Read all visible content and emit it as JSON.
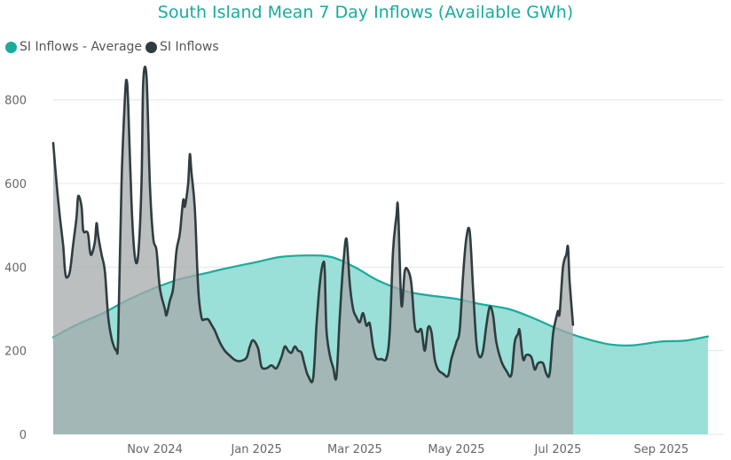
{
  "chart_data": {
    "type": "area",
    "title": "South Island Mean 7 Day Inflows (Available GWh)",
    "xlabel": "",
    "ylabel": "",
    "ylim": [
      0,
      880
    ],
    "xlim": [
      "2024-09-01",
      "2025-09-29"
    ],
    "y_ticks": [
      0,
      200,
      400,
      600,
      800
    ],
    "x_ticks": [
      {
        "label": "Nov 2024",
        "date": "2024-11-01"
      },
      {
        "label": "Jan 2025",
        "date": "2025-01-01"
      },
      {
        "label": "Mar 2025",
        "date": "2025-03-01"
      },
      {
        "label": "May 2025",
        "date": "2025-05-01"
      },
      {
        "label": "Jul 2025",
        "date": "2025-07-01"
      },
      {
        "label": "Sep 2025",
        "date": "2025-09-01"
      }
    ],
    "grid": true,
    "legend_position": "top-left",
    "series": [
      {
        "name": "SI Inflows - Average",
        "color": "#1aab9b",
        "fill": "#8fdcd4",
        "points": [
          [
            "2024-09-01",
            232
          ],
          [
            "2024-09-15",
            262
          ],
          [
            "2024-10-01",
            290
          ],
          [
            "2024-10-15",
            320
          ],
          [
            "2024-11-01",
            350
          ],
          [
            "2024-11-15",
            370
          ],
          [
            "2024-12-01",
            385
          ],
          [
            "2024-12-15",
            398
          ],
          [
            "2025-01-01",
            412
          ],
          [
            "2025-01-15",
            424
          ],
          [
            "2025-02-01",
            428
          ],
          [
            "2025-02-15",
            424
          ],
          [
            "2025-03-01",
            400
          ],
          [
            "2025-03-15",
            368
          ],
          [
            "2025-04-01",
            342
          ],
          [
            "2025-04-15",
            332
          ],
          [
            "2025-05-01",
            324
          ],
          [
            "2025-05-15",
            312
          ],
          [
            "2025-06-01",
            300
          ],
          [
            "2025-06-15",
            280
          ],
          [
            "2025-07-01",
            252
          ],
          [
            "2025-07-15",
            232
          ],
          [
            "2025-08-01",
            215
          ],
          [
            "2025-08-15",
            213
          ],
          [
            "2025-09-01",
            222
          ],
          [
            "2025-09-15",
            224
          ],
          [
            "2025-09-29",
            234
          ]
        ]
      },
      {
        "name": "SI Inflows",
        "color": "#2f3d40",
        "fill": "#a4a9ab",
        "points": [
          [
            "2024-09-01",
            697
          ],
          [
            "2024-09-03",
            600
          ],
          [
            "2024-09-05",
            520
          ],
          [
            "2024-09-07",
            450
          ],
          [
            "2024-09-08",
            395
          ],
          [
            "2024-09-09",
            375
          ],
          [
            "2024-09-11",
            390
          ],
          [
            "2024-09-13",
            455
          ],
          [
            "2024-09-15",
            520
          ],
          [
            "2024-09-16",
            570
          ],
          [
            "2024-09-18",
            545
          ],
          [
            "2024-09-19",
            488
          ],
          [
            "2024-09-21",
            485
          ],
          [
            "2024-09-22",
            478
          ],
          [
            "2024-09-23",
            440
          ],
          [
            "2024-09-24",
            430
          ],
          [
            "2024-09-26",
            460
          ],
          [
            "2024-09-27",
            505
          ],
          [
            "2024-09-28",
            475
          ],
          [
            "2024-09-30",
            430
          ],
          [
            "2024-10-02",
            390
          ],
          [
            "2024-10-04",
            280
          ],
          [
            "2024-10-06",
            230
          ],
          [
            "2024-10-08",
            205
          ],
          [
            "2024-10-09",
            203
          ],
          [
            "2024-10-10",
            230
          ],
          [
            "2024-10-12",
            600
          ],
          [
            "2024-10-14",
            800
          ],
          [
            "2024-10-15",
            848
          ],
          [
            "2024-10-16",
            790
          ],
          [
            "2024-10-18",
            550
          ],
          [
            "2024-10-20",
            425
          ],
          [
            "2024-10-22",
            430
          ],
          [
            "2024-10-24",
            600
          ],
          [
            "2024-10-25",
            840
          ],
          [
            "2024-10-27",
            855
          ],
          [
            "2024-10-29",
            600
          ],
          [
            "2024-10-31",
            470
          ],
          [
            "2024-11-02",
            440
          ],
          [
            "2024-11-04",
            350
          ],
          [
            "2024-11-07",
            300
          ],
          [
            "2024-11-08",
            285
          ],
          [
            "2024-11-10",
            320
          ],
          [
            "2024-11-12",
            350
          ],
          [
            "2024-11-14",
            440
          ],
          [
            "2024-11-16",
            480
          ],
          [
            "2024-11-18",
            560
          ],
          [
            "2024-11-19",
            545
          ],
          [
            "2024-11-21",
            600
          ],
          [
            "2024-11-22",
            670
          ],
          [
            "2024-11-23",
            625
          ],
          [
            "2024-11-25",
            540
          ],
          [
            "2024-11-27",
            350
          ],
          [
            "2024-11-29",
            280
          ],
          [
            "2024-12-01",
            275
          ],
          [
            "2024-12-03",
            275
          ],
          [
            "2024-12-05",
            262
          ],
          [
            "2024-12-07",
            248
          ],
          [
            "2024-12-10",
            220
          ],
          [
            "2024-12-13",
            200
          ],
          [
            "2024-12-16",
            188
          ],
          [
            "2024-12-19",
            178
          ],
          [
            "2024-12-22",
            175
          ],
          [
            "2024-12-26",
            183
          ],
          [
            "2024-12-28",
            210
          ],
          [
            "2024-12-30",
            225
          ],
          [
            "2025-01-02",
            205
          ],
          [
            "2025-01-04",
            162
          ],
          [
            "2025-01-07",
            158
          ],
          [
            "2025-01-10",
            165
          ],
          [
            "2025-01-13",
            158
          ],
          [
            "2025-01-16",
            185
          ],
          [
            "2025-01-18",
            210
          ],
          [
            "2025-01-20",
            200
          ],
          [
            "2025-01-22",
            195
          ],
          [
            "2025-01-24",
            210
          ],
          [
            "2025-01-26",
            200
          ],
          [
            "2025-01-28",
            195
          ],
          [
            "2025-01-30",
            165
          ],
          [
            "2025-02-01",
            140
          ],
          [
            "2025-02-04",
            133
          ],
          [
            "2025-02-06",
            260
          ],
          [
            "2025-02-08",
            360
          ],
          [
            "2025-02-10",
            410
          ],
          [
            "2025-02-11",
            390
          ],
          [
            "2025-02-12",
            250
          ],
          [
            "2025-02-14",
            190
          ],
          [
            "2025-02-16",
            160
          ],
          [
            "2025-02-18",
            137
          ],
          [
            "2025-02-20",
            280
          ],
          [
            "2025-02-22",
            400
          ],
          [
            "2025-02-24",
            468
          ],
          [
            "2025-02-26",
            360
          ],
          [
            "2025-02-28",
            300
          ],
          [
            "2025-03-02",
            280
          ],
          [
            "2025-03-04",
            268
          ],
          [
            "2025-03-06",
            290
          ],
          [
            "2025-03-08",
            260
          ],
          [
            "2025-03-10",
            265
          ],
          [
            "2025-03-12",
            210
          ],
          [
            "2025-03-14",
            182
          ],
          [
            "2025-03-17",
            180
          ],
          [
            "2025-03-20",
            182
          ],
          [
            "2025-03-22",
            245
          ],
          [
            "2025-03-24",
            440
          ],
          [
            "2025-03-26",
            520
          ],
          [
            "2025-03-27",
            540
          ],
          [
            "2025-03-29",
            310
          ],
          [
            "2025-03-31",
            390
          ],
          [
            "2025-04-02",
            392
          ],
          [
            "2025-04-04",
            360
          ],
          [
            "2025-04-06",
            260
          ],
          [
            "2025-04-08",
            245
          ],
          [
            "2025-04-10",
            250
          ],
          [
            "2025-04-12",
            200
          ],
          [
            "2025-04-14",
            255
          ],
          [
            "2025-04-16",
            245
          ],
          [
            "2025-04-18",
            180
          ],
          [
            "2025-04-20",
            155
          ],
          [
            "2025-04-23",
            145
          ],
          [
            "2025-04-26",
            140
          ],
          [
            "2025-04-28",
            180
          ],
          [
            "2025-05-01",
            220
          ],
          [
            "2025-05-03",
            250
          ],
          [
            "2025-05-05",
            380
          ],
          [
            "2025-05-07",
            470
          ],
          [
            "2025-05-09",
            485
          ],
          [
            "2025-05-11",
            350
          ],
          [
            "2025-05-13",
            220
          ],
          [
            "2025-05-15",
            185
          ],
          [
            "2025-05-17",
            200
          ],
          [
            "2025-05-19",
            260
          ],
          [
            "2025-05-21",
            305
          ],
          [
            "2025-05-23",
            285
          ],
          [
            "2025-05-25",
            220
          ],
          [
            "2025-05-28",
            175
          ],
          [
            "2025-05-31",
            152
          ],
          [
            "2025-06-03",
            142
          ],
          [
            "2025-06-05",
            220
          ],
          [
            "2025-06-07",
            240
          ],
          [
            "2025-06-08",
            248
          ],
          [
            "2025-06-10",
            180
          ],
          [
            "2025-06-12",
            190
          ],
          [
            "2025-06-15",
            185
          ],
          [
            "2025-06-17",
            155
          ],
          [
            "2025-06-19",
            170
          ],
          [
            "2025-06-22",
            170
          ],
          [
            "2025-06-24",
            145
          ],
          [
            "2025-06-26",
            145
          ],
          [
            "2025-06-28",
            240
          ],
          [
            "2025-06-30",
            280
          ],
          [
            "2025-07-01",
            295
          ],
          [
            "2025-07-02",
            290
          ],
          [
            "2025-07-04",
            400
          ],
          [
            "2025-07-06",
            430
          ],
          [
            "2025-07-07",
            448
          ],
          [
            "2025-07-08",
            365
          ],
          [
            "2025-07-10",
            262
          ]
        ]
      }
    ]
  }
}
